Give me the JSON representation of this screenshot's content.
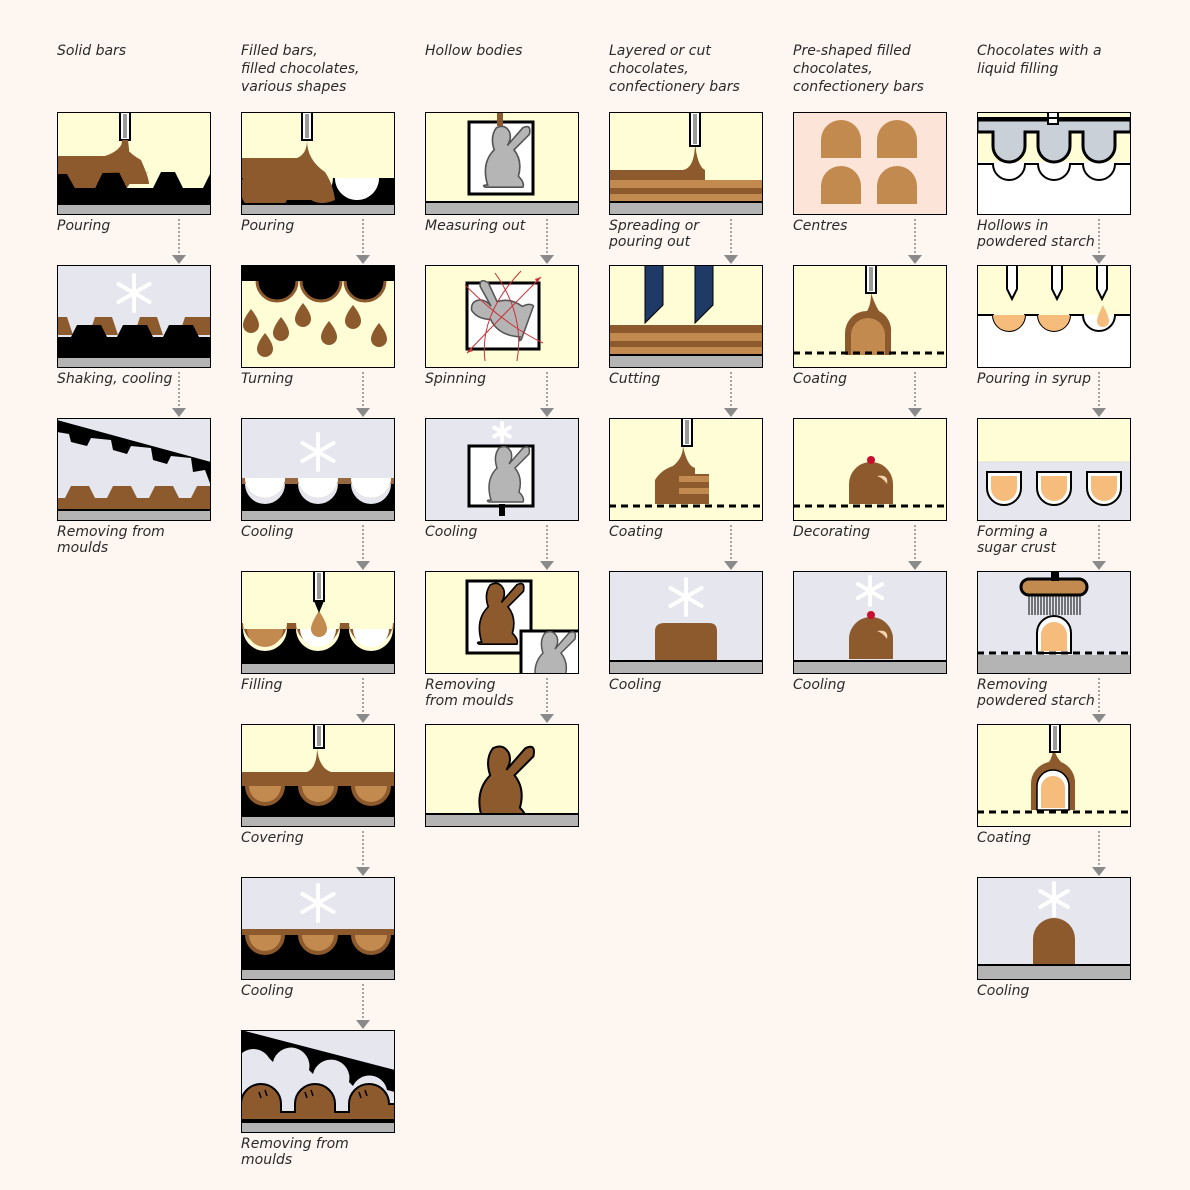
{
  "columns": [
    {
      "title": "Solid bars",
      "steps": [
        {
          "label": "Pouring",
          "scene": "pour-solid"
        },
        {
          "label": "Shaking, cooling",
          "scene": "shake-cool"
        },
        {
          "label": "Removing from\nmoulds",
          "scene": "remove-solid"
        }
      ]
    },
    {
      "title": "Filled bars,\nfilled chocolates,\nvarious shapes",
      "steps": [
        {
          "label": "Pouring",
          "scene": "pour-filled"
        },
        {
          "label": "Turning",
          "scene": "turning"
        },
        {
          "label": "Cooling",
          "scene": "cool-shells"
        },
        {
          "label": "Filling",
          "scene": "filling"
        },
        {
          "label": "Covering",
          "scene": "covering"
        },
        {
          "label": "Cooling",
          "scene": "cool-covered"
        },
        {
          "label": "Removing from moulds",
          "scene": "remove-filled"
        }
      ]
    },
    {
      "title": "Hollow bodies",
      "steps": [
        {
          "label": "Measuring out",
          "scene": "measure"
        },
        {
          "label": "Spinning",
          "scene": "spinning"
        },
        {
          "label": "Cooling",
          "scene": "cool-hollow"
        },
        {
          "label": "Removing\nfrom moulds",
          "scene": "remove-hollow"
        },
        {
          "label": "",
          "scene": "bunny"
        }
      ]
    },
    {
      "title": "Layered or cut\nchocolates,\nconfectionery bars",
      "steps": [
        {
          "label": "Spreading or\npouring out",
          "scene": "spread"
        },
        {
          "label": "Cutting",
          "scene": "cutting"
        },
        {
          "label": "Coating",
          "scene": "coat-layer"
        },
        {
          "label": "Cooling",
          "scene": "cool-layer"
        }
      ]
    },
    {
      "title": "Pre-shaped filled\nchocolates,\nconfectionery bars",
      "steps": [
        {
          "label": "Centres",
          "scene": "centres"
        },
        {
          "label": "Coating",
          "scene": "coat-centre"
        },
        {
          "label": "Decorating",
          "scene": "decorate"
        },
        {
          "label": "Cooling",
          "scene": "cool-decorated"
        }
      ]
    },
    {
      "title": "Chocolates with a\nliquid filling",
      "steps": [
        {
          "label": "Hollows in\npowdered starch",
          "scene": "starch-hollows"
        },
        {
          "label": "Pouring in syrup",
          "scene": "syrup"
        },
        {
          "label": "Forming a\nsugar crust",
          "scene": "crust"
        },
        {
          "label": "Removing\npowdered starch",
          "scene": "brush"
        },
        {
          "label": "Coating",
          "scene": "coat-liquid"
        },
        {
          "label": "Cooling",
          "scene": "cool-liquid"
        }
      ]
    }
  ],
  "colors": {
    "chocolate": "#8d5a2e",
    "milk": "#c28a4e",
    "cream": "#fefdd6",
    "cool": "#e5e6ee",
    "mould": "#000000",
    "belt": "#b4b4b4",
    "filling": "#f6bc7c",
    "centre_bg": "#fce4d8",
    "arrow": "#8a8a8a"
  }
}
